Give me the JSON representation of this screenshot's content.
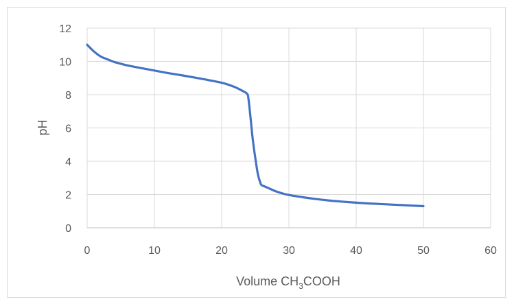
{
  "chart_data": {
    "type": "line",
    "title": "",
    "xlabel": {
      "prefix": "Volume CH",
      "sub1": "3",
      "mid": "COOH"
    },
    "ylabel": "pH",
    "xlim": [
      0,
      60
    ],
    "ylim": [
      0,
      12
    ],
    "xticks": [
      0,
      10,
      20,
      30,
      40,
      50,
      60
    ],
    "yticks": [
      0,
      2,
      4,
      6,
      8,
      10,
      12
    ],
    "grid": true,
    "legend": "none",
    "series": [
      {
        "color": "#4472c4",
        "x": [
          0,
          1,
          2,
          3,
          4,
          5,
          6,
          8,
          10,
          12,
          14,
          16,
          18,
          20,
          21,
          22,
          23,
          23.8,
          24,
          24.3,
          24.6,
          25,
          25.4,
          25.8,
          26,
          26.3,
          27,
          28,
          29,
          30,
          32,
          34,
          36,
          38,
          40,
          42,
          44,
          46,
          48,
          50
        ],
        "y": [
          11.0,
          10.6,
          10.3,
          10.13,
          9.97,
          9.86,
          9.76,
          9.6,
          9.45,
          9.3,
          9.17,
          9.03,
          8.88,
          8.72,
          8.6,
          8.45,
          8.25,
          8.05,
          7.7,
          6.6,
          5.4,
          4.2,
          3.2,
          2.65,
          2.55,
          2.5,
          2.38,
          2.2,
          2.07,
          1.97,
          1.84,
          1.73,
          1.64,
          1.57,
          1.51,
          1.46,
          1.42,
          1.38,
          1.34,
          1.3
        ]
      }
    ]
  }
}
